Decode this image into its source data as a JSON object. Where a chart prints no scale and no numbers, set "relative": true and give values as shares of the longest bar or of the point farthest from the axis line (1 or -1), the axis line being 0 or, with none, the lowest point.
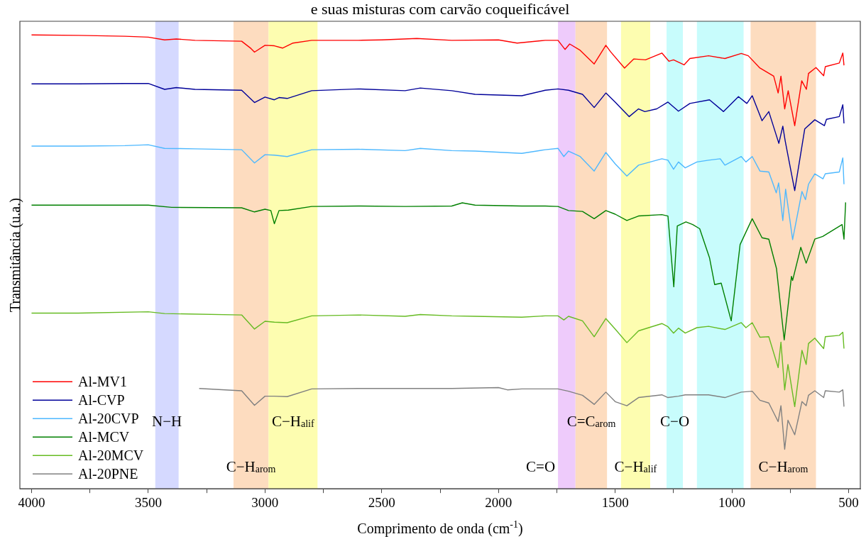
{
  "chart_data": {
    "type": "line",
    "title": "e suas misturas com carvão coqueificável",
    "xlabel": "Comprimento de onda (cm$^{-1}$)",
    "ylabel": "Transmitância (u.a.)",
    "relative": true,
    "xlim": [
      4050,
      450
    ],
    "xticks": [
      4000,
      {
        "value": 3750,
        "label": null
      },
      3500,
      {
        "value": 3250,
        "label": null
      },
      3000,
      {
        "value": 2750,
        "label": null
      },
      2500,
      {
        "value": 2250,
        "label": null
      },
      2000,
      {
        "value": 1750,
        "label": null
      },
      1500,
      {
        "value": 1250,
        "label": null
      },
      1000,
      {
        "value": 750,
        "label": null
      },
      500
    ],
    "tick_labels": "x",
    "grid": false,
    "legend": "bottom left",
    "marker": "none",
    "line_style": "solid",
    "series": [
      {
        "name": "Al-MV1",
        "color": "#ff0000",
        "x": [
          4000,
          3800,
          3600,
          3500,
          3430,
          3380,
          3300,
          3100,
          3060,
          3045,
          3000,
          2960,
          2925,
          2880,
          2800,
          2600,
          2500,
          2350,
          2200,
          2000,
          1920,
          1800,
          1745,
          1715,
          1695,
          1650,
          1590,
          1540,
          1520,
          1460,
          1420,
          1370,
          1300,
          1270,
          1250,
          1205,
          1180,
          1100,
          1030,
          960,
          930,
          880,
          821,
          802,
          790,
          774,
          759,
          731,
          701,
          681,
          672,
          640,
          607,
          600,
          540,
          525,
          520
        ],
        "values": [
          1,
          0.999,
          0.997,
          0.995,
          0.989,
          0.991,
          0.988,
          0.986,
          0.97,
          0.962,
          0.977,
          0.976,
          0.971,
          0.982,
          0.988,
          0.988,
          0.989,
          0.992,
          0.988,
          0.989,
          0.982,
          0.988,
          0.988,
          0.968,
          0.98,
          0.966,
          0.936,
          0.977,
          0.963,
          0.927,
          0.947,
          0.945,
          0.96,
          0.942,
          0.945,
          0.934,
          0.948,
          0.954,
          0.948,
          0.959,
          0.954,
          0.927,
          0.909,
          0.872,
          0.909,
          0.837,
          0.877,
          0.8,
          0.899,
          0.88,
          0.915,
          0.928,
          0.91,
          0.93,
          0.938,
          0.96,
          0.933
        ]
      },
      {
        "name": "Al-CVP",
        "color": "#000099",
        "x": [
          4000,
          3800,
          3600,
          3500,
          3430,
          3380,
          3300,
          3100,
          3045,
          3000,
          2960,
          2940,
          2905,
          2800,
          2600,
          2400,
          2335,
          2200,
          2100,
          1900,
          1800,
          1745,
          1700,
          1640,
          1590,
          1540,
          1500,
          1440,
          1400,
          1373,
          1322,
          1274,
          1229,
          1180,
          1096,
          1036,
          972,
          936,
          913,
          871,
          842,
          799,
          782,
          772,
          731,
          688,
          645,
          604,
          595,
          540,
          525,
          520
        ],
        "values": [
          0.892,
          0.892,
          0.893,
          0.893,
          0.88,
          0.884,
          0.88,
          0.878,
          0.851,
          0.863,
          0.857,
          0.862,
          0.86,
          0.877,
          0.881,
          0.877,
          0.883,
          0.877,
          0.869,
          0.866,
          0.878,
          0.881,
          0.878,
          0.869,
          0.84,
          0.872,
          0.852,
          0.82,
          0.837,
          0.831,
          0.837,
          0.852,
          0.832,
          0.849,
          0.857,
          0.831,
          0.864,
          0.849,
          0.866,
          0.811,
          0.831,
          0.761,
          0.799,
          0.767,
          0.657,
          0.793,
          0.813,
          0.8,
          0.814,
          0.82,
          0.846,
          0.805
        ]
      },
      {
        "name": "Al-20CVP",
        "color": "#4db8ff",
        "x": [
          4000,
          3800,
          3600,
          3500,
          3430,
          3300,
          3100,
          3045,
          3000,
          2960,
          2905,
          2800,
          2600,
          2400,
          2335,
          2200,
          2100,
          1900,
          1800,
          1745,
          1720,
          1700,
          1650,
          1590,
          1540,
          1500,
          1450,
          1400,
          1300,
          1274,
          1250,
          1229,
          1200,
          1150,
          1100,
          1050,
          1030,
          960,
          940,
          913,
          880,
          842,
          810,
          800,
          782,
          770,
          740,
          700,
          685,
          672,
          645,
          610,
          600,
          540,
          525,
          520
        ],
        "values": [
          0.755,
          0.755,
          0.756,
          0.758,
          0.75,
          0.749,
          0.747,
          0.718,
          0.736,
          0.735,
          0.732,
          0.747,
          0.748,
          0.745,
          0.75,
          0.745,
          0.744,
          0.739,
          0.747,
          0.75,
          0.732,
          0.744,
          0.732,
          0.7,
          0.741,
          0.716,
          0.689,
          0.713,
          0.727,
          0.724,
          0.704,
          0.72,
          0.707,
          0.72,
          0.724,
          0.727,
          0.713,
          0.732,
          0.72,
          0.732,
          0.7,
          0.698,
          0.652,
          0.674,
          0.591,
          0.66,
          0.549,
          0.655,
          0.637,
          0.671,
          0.694,
          0.683,
          0.694,
          0.698,
          0.729,
          0.671
        ]
      },
      {
        "name": "Al-MCV",
        "color": "#008000",
        "x": [
          4000,
          3800,
          3500,
          3400,
          3100,
          3045,
          3000,
          2975,
          2960,
          2940,
          2900,
          2800,
          2600,
          2400,
          2200,
          2155,
          2100,
          1900,
          1800,
          1745,
          1700,
          1640,
          1590,
          1540,
          1500,
          1450,
          1400,
          1300,
          1274,
          1249,
          1234,
          1197,
          1168,
          1138,
          1096,
          1074,
          1046,
          1003,
          965,
          913,
          871,
          842,
          809,
          776,
          745,
          740,
          705,
          682,
          645,
          611,
          528,
          520,
          513
        ],
        "values": [
          0.625,
          0.625,
          0.625,
          0.62,
          0.619,
          0.61,
          0.616,
          0.613,
          0.584,
          0.613,
          0.614,
          0.622,
          0.623,
          0.622,
          0.623,
          0.63,
          0.625,
          0.623,
          0.623,
          0.622,
          0.613,
          0.611,
          0.595,
          0.613,
          0.605,
          0.591,
          0.601,
          0.604,
          0.601,
          0.445,
          0.579,
          0.588,
          0.582,
          0.573,
          0.509,
          0.45,
          0.453,
          0.37,
          0.538,
          0.595,
          0.553,
          0.55,
          0.485,
          0.328,
          0.468,
          0.459,
          0.532,
          0.497,
          0.55,
          0.556,
          0.582,
          0.55,
          0.631
        ]
      },
      {
        "name": "Al-20MCV",
        "color": "#66bb22",
        "x": [
          4000,
          3800,
          3500,
          3430,
          3100,
          3045,
          3000,
          2960,
          2905,
          2800,
          2600,
          2400,
          2335,
          2200,
          2100,
          1900,
          1800,
          1745,
          1720,
          1700,
          1640,
          1590,
          1540,
          1500,
          1450,
          1400,
          1300,
          1274,
          1250,
          1229,
          1200,
          1150,
          1100,
          1030,
          960,
          940,
          913,
          880,
          842,
          802,
          790,
          774,
          760,
          731,
          700,
          682,
          672,
          645,
          607,
          600,
          540,
          525,
          520
        ],
        "values": [
          0.387,
          0.387,
          0.39,
          0.386,
          0.383,
          0.352,
          0.369,
          0.367,
          0.366,
          0.381,
          0.383,
          0.38,
          0.384,
          0.381,
          0.38,
          0.378,
          0.381,
          0.381,
          0.372,
          0.38,
          0.37,
          0.335,
          0.375,
          0.352,
          0.322,
          0.348,
          0.364,
          0.357,
          0.343,
          0.354,
          0.343,
          0.355,
          0.358,
          0.351,
          0.366,
          0.355,
          0.366,
          0.334,
          0.335,
          0.267,
          0.323,
          0.218,
          0.274,
          0.181,
          0.305,
          0.274,
          0.32,
          0.332,
          0.309,
          0.335,
          0.338,
          0.345,
          0.309
        ]
      },
      {
        "name": "Al-20PNE",
        "color": "#808080",
        "x": [
          3282,
          3100,
          3045,
          3000,
          2960,
          2905,
          2800,
          2600,
          2400,
          2200,
          2000,
          1962,
          1900,
          1745,
          1700,
          1640,
          1590,
          1540,
          1500,
          1450,
          1400,
          1300,
          1274,
          1229,
          1200,
          1100,
          1030,
          960,
          913,
          880,
          842,
          802,
          790,
          774,
          760,
          731,
          700,
          682,
          672,
          645,
          607,
          600,
          540,
          525,
          520
        ],
        "values": [
          0.221,
          0.216,
          0.184,
          0.204,
          0.204,
          0.203,
          0.22,
          0.221,
          0.221,
          0.221,
          0.223,
          0.218,
          0.22,
          0.22,
          0.215,
          0.206,
          0.186,
          0.213,
          0.192,
          0.183,
          0.201,
          0.207,
          0.201,
          0.204,
          0.207,
          0.207,
          0.201,
          0.213,
          0.215,
          0.195,
          0.189,
          0.148,
          0.183,
          0.087,
          0.151,
          0.119,
          0.192,
          0.183,
          0.206,
          0.216,
          0.201,
          0.216,
          0.213,
          0.218,
          0.181
        ]
      }
    ],
    "bands": [
      {
        "axis": "x",
        "from": 3470,
        "to": 3370,
        "color": "#d5d9ff",
        "label": "N−H"
      },
      {
        "axis": "x",
        "from": 3135,
        "to": 2985,
        "color": "#fddcbf",
        "label": "C−H$_{arom}$"
      },
      {
        "axis": "x",
        "from": 2985,
        "to": 2775,
        "color": "#fdfdb0",
        "label": "C−H$_{alif}$"
      },
      {
        "axis": "x",
        "from": 1745,
        "to": 1670,
        "color": "#eecbfb",
        "label": "C=O"
      },
      {
        "axis": "x",
        "from": 1670,
        "to": 1535,
        "color": "#fddcbf",
        "label": "C=C$_{arom}$"
      },
      {
        "axis": "x",
        "from": 1475,
        "to": 1350,
        "color": "#fdfdb0",
        "label": "C−H$_{alif}$"
      },
      {
        "axis": "x",
        "from": 1280,
        "to": 1210,
        "color": "#c8fcfc",
        "label": "C−O"
      },
      {
        "axis": "x",
        "from": 1150,
        "to": 950,
        "color": "#c8fcfc"
      },
      {
        "axis": "x",
        "from": 920,
        "to": 640,
        "color": "#fddcbf",
        "label": "C−H$_{arom}$"
      }
    ]
  }
}
